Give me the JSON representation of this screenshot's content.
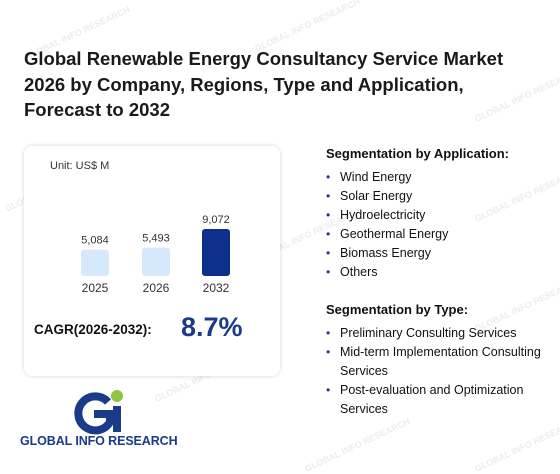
{
  "title": "Global Renewable Energy Consultancy Service Market 2026 by Company, Regions, Type and Application, Forecast to 2032",
  "chart_data": {
    "type": "bar",
    "unit": "Unit: US$ M",
    "categories": [
      "2025",
      "2026",
      "2032"
    ],
    "values": [
      5084,
      5493,
      9072
    ],
    "value_labels": [
      "5,084",
      "5,493",
      "9,072"
    ],
    "bar_colors": [
      "#d6e8fb",
      "#d6e8fb",
      "#0f2f8c"
    ],
    "ylim": [
      0,
      9072
    ]
  },
  "cagr": {
    "label": "CAGR(2026-2032):",
    "value": "8.7%"
  },
  "segmentation_application": {
    "heading": "Segmentation by Application:",
    "items": [
      "Wind Energy",
      "Solar Energy",
      "Hydroelectricity",
      "Geothermal Energy",
      "Biomass Energy",
      "Others"
    ]
  },
  "segmentation_type": {
    "heading": "Segmentation by Type:",
    "items": [
      "Preliminary Consulting Services",
      "Mid-term Implementation Consulting Services",
      "Post-evaluation and Optimization Services"
    ]
  },
  "logo": {
    "text": "GLOBAL INFO RESEARCH"
  },
  "watermark": {
    "text": "GLOBAL INFO RESEARCH"
  },
  "colors": {
    "accent": "#1a3a8a",
    "logo_green": "#8dc63f",
    "bar_light": "#d6e8fb",
    "bar_dark": "#0f2f8c"
  }
}
